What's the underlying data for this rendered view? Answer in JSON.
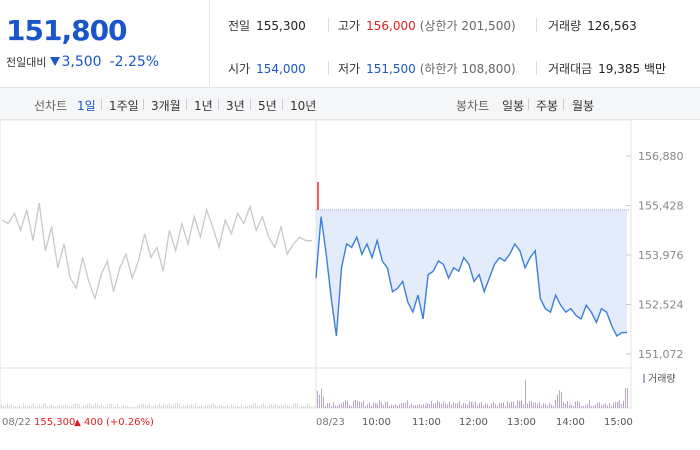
{
  "summary": {
    "price": "151,800",
    "change_label": "전일대비",
    "change_amount": "3,500",
    "change_rate": "-2.25%",
    "prev_close_label": "전일",
    "prev_close": "155,300",
    "high_label": "고가",
    "high": "156,000",
    "upper_limit": "(상한가 201,500)",
    "volume_label": "거래량",
    "volume": "126,563",
    "open_label": "시가",
    "open": "154,000",
    "low_label": "저가",
    "low": "151,500",
    "lower_limit": "(하한가 108,800)",
    "value_label": "거래대금",
    "value": "19,385",
    "value_unit": "백만"
  },
  "tabs": {
    "line_label": "선차트",
    "line_periods": [
      "1일",
      "1주일",
      "3개월",
      "1년",
      "3년",
      "5년",
      "10년"
    ],
    "candle_label": "봉차트",
    "candle_periods": [
      "일봉",
      "주봉",
      "월봉"
    ]
  },
  "colors": {
    "up": "#e02020",
    "down": "#1a56c9",
    "prev_line": "#c8c8c8",
    "fill": "#dfe9fb",
    "volume": "#b9a3d6"
  },
  "chart_data": {
    "type": "line",
    "y_ticks": [
      "156,880",
      "155,428",
      "153,976",
      "152,524",
      "151,072"
    ],
    "ylim": [
      151072,
      156880
    ],
    "reference_price": 155300,
    "prev_day": {
      "date_label": "08/22",
      "close": "155,300",
      "change": "400",
      "change_rate": "(+0.26%)",
      "values": [
        155000,
        154900,
        155200,
        154700,
        155300,
        154400,
        155500,
        154100,
        154800,
        153600,
        154300,
        153300,
        153000,
        153900,
        153200,
        152700,
        153400,
        153800,
        152900,
        153600,
        154000,
        153300,
        153800,
        154600,
        153900,
        154200,
        153500,
        154700,
        154100,
        154900,
        154300,
        155100,
        154500,
        155300,
        154800,
        154200,
        155000,
        154600,
        155200,
        154900,
        155400,
        154700,
        155100,
        154500,
        154200,
        154800,
        154000,
        154300,
        154500,
        154400,
        154400
      ]
    },
    "cur_day": {
      "date_label": "08/23",
      "x_ticks": [
        "10:00",
        "11:00",
        "12:00",
        "13:00",
        "14:00",
        "15:00"
      ],
      "values": [
        153300,
        155100,
        154000,
        152700,
        151600,
        153600,
        154300,
        154200,
        154500,
        154000,
        154300,
        153900,
        154400,
        153800,
        153600,
        152900,
        153000,
        153200,
        152600,
        152300,
        152800,
        152100,
        153400,
        153500,
        153800,
        153700,
        153300,
        153600,
        153500,
        153900,
        153700,
        153200,
        153400,
        152900,
        153300,
        153700,
        153900,
        153800,
        154000,
        154300,
        154100,
        153600,
        153900,
        154100,
        152700,
        152400,
        152300,
        152800,
        152500,
        152300,
        152400,
        152200,
        152100,
        152500,
        152300,
        152000,
        152400,
        152300,
        151900,
        151600,
        151700,
        151700
      ]
    },
    "volume_label": "거래량"
  }
}
